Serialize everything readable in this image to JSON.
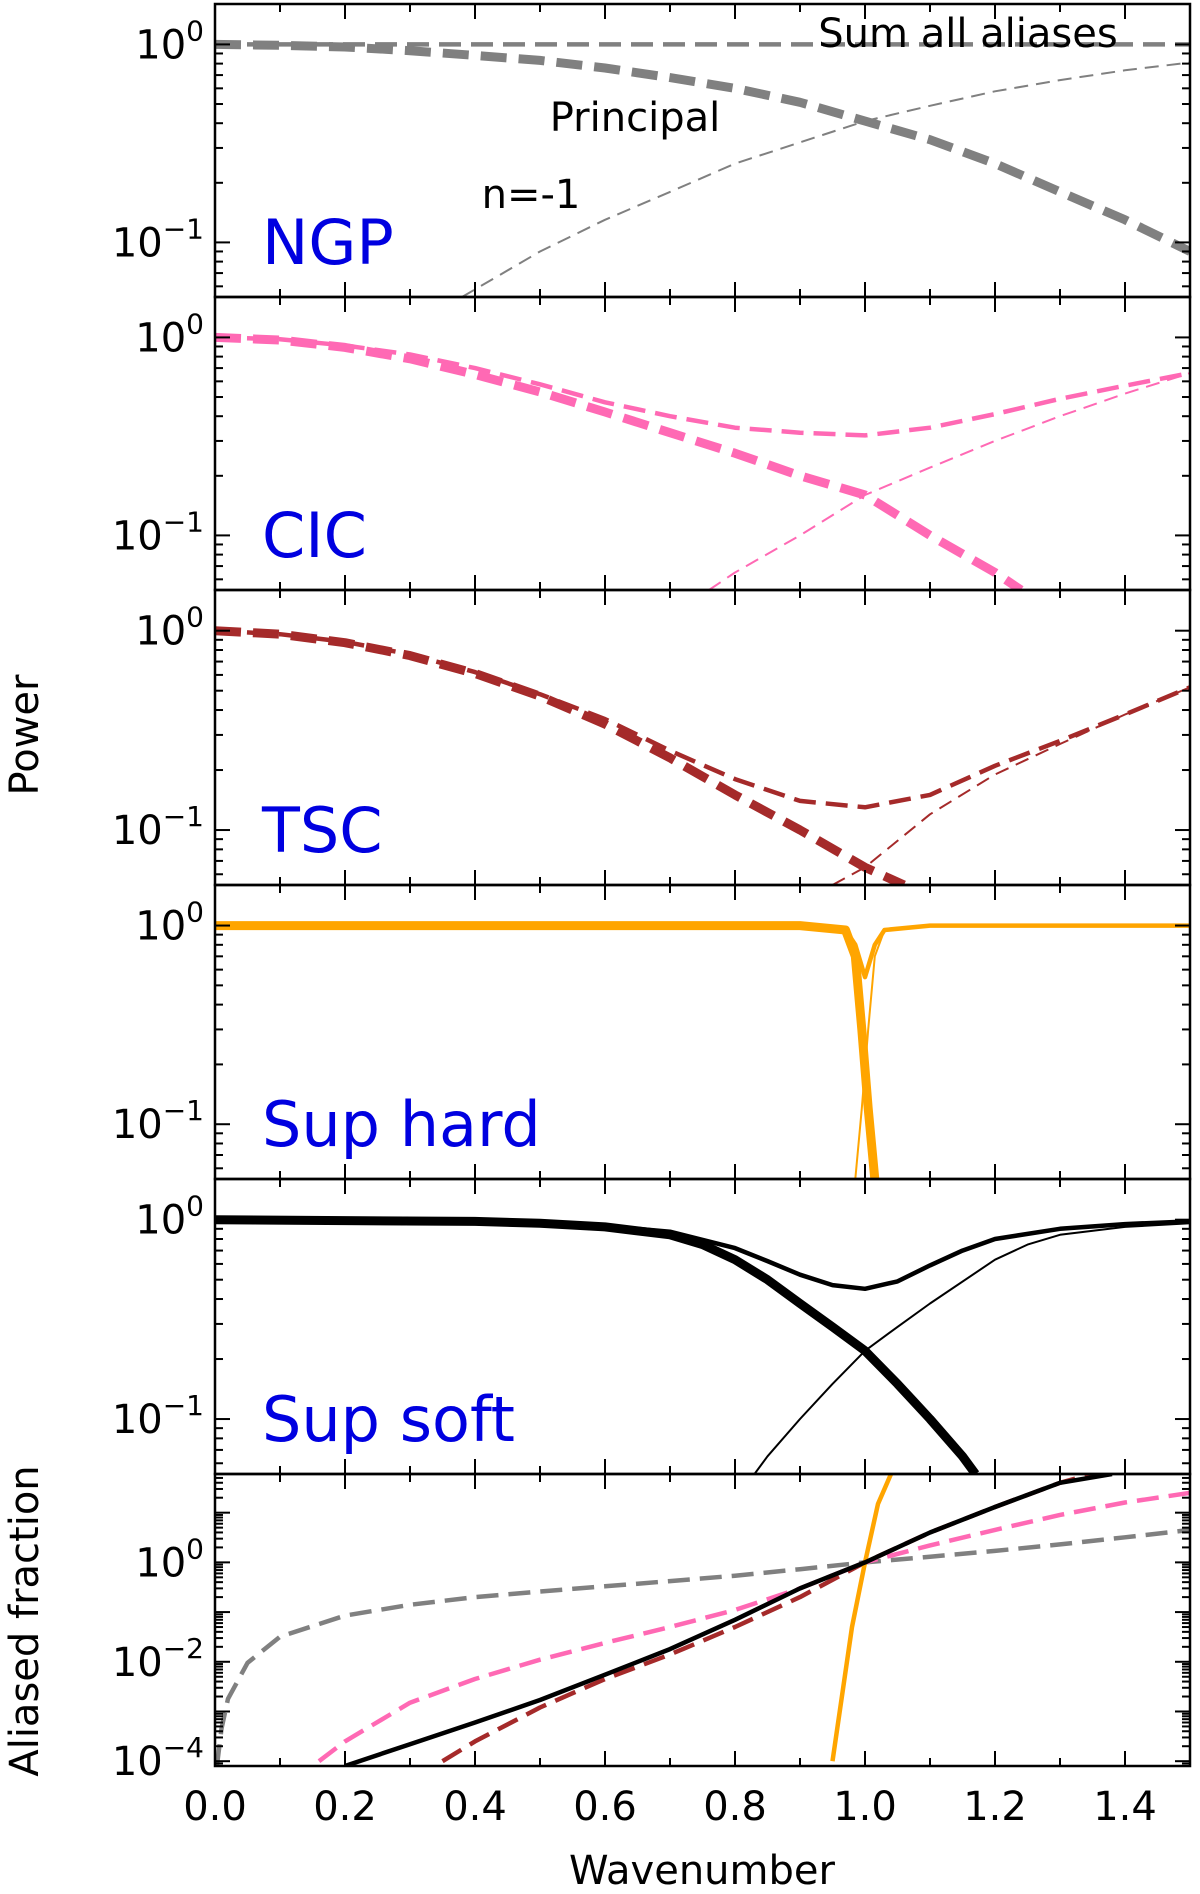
{
  "figure": {
    "xlabel": "Wavenumber",
    "xticks": [
      "0.0",
      "0.2",
      "0.4",
      "0.6",
      "0.8",
      "1.0",
      "1.2",
      "1.4"
    ],
    "ylabels": [
      {
        "text": "Power",
        "panels": [
          0,
          4
        ]
      },
      {
        "text": "Aliased fraction",
        "panels": [
          5,
          5
        ]
      }
    ]
  },
  "colors": {
    "NGP": "#808080",
    "CIC": "#ff69b4",
    "TSC": "#a52a2a",
    "SupHard": "#ffa500",
    "SupSoft": "#000000",
    "label": "#0000e0"
  },
  "chart_data": [
    {
      "type": "line",
      "label": "NGP",
      "yscale": "log",
      "xlim": [
        0,
        1.5
      ],
      "ylim": [
        0.053,
        1.6
      ],
      "yticks": [
        1,
        0.1
      ],
      "ytick_labels": [
        "10^0",
        "10^-1"
      ],
      "annotations": [
        {
          "text": "Sum all aliases",
          "x": 1.15,
          "y": 1.3
        },
        {
          "text": "Principal",
          "x": 0.67,
          "y": 0.54
        },
        {
          "text": "n=-1",
          "x": 0.44,
          "y": 0.18
        }
      ],
      "series": [
        {
          "role": "sum",
          "style": "dashed",
          "width": "medium",
          "x": [
            0,
            0.5,
            1.0,
            1.5
          ],
          "y": [
            1,
            1,
            1,
            1
          ]
        },
        {
          "role": "principal",
          "style": "dashed",
          "width": "thick",
          "x": [
            0,
            0.1,
            0.2,
            0.3,
            0.4,
            0.5,
            0.6,
            0.7,
            0.8,
            0.9,
            1.0,
            1.1,
            1.2,
            1.3,
            1.4,
            1.5
          ],
          "y": [
            1,
            0.99,
            0.97,
            0.93,
            0.88,
            0.83,
            0.76,
            0.68,
            0.6,
            0.51,
            0.41,
            0.33,
            0.25,
            0.18,
            0.13,
            0.09
          ]
        },
        {
          "role": "alias n=-1",
          "style": "dashed",
          "width": "thin",
          "x": [
            0.38,
            0.5,
            0.6,
            0.7,
            0.8,
            0.9,
            1.0,
            1.1,
            1.2,
            1.3,
            1.4,
            1.5
          ],
          "y": [
            0.053,
            0.09,
            0.13,
            0.18,
            0.25,
            0.32,
            0.41,
            0.49,
            0.58,
            0.66,
            0.74,
            0.81
          ]
        }
      ]
    },
    {
      "type": "line",
      "label": "CIC",
      "yscale": "log",
      "xlim": [
        0,
        1.5
      ],
      "ylim": [
        0.053,
        1.6
      ],
      "yticks": [
        1,
        0.1
      ],
      "ytick_labels": [
        "10^0",
        "10^-1"
      ],
      "series": [
        {
          "role": "sum",
          "style": "dashed",
          "width": "medium",
          "x": [
            0,
            0.1,
            0.2,
            0.3,
            0.4,
            0.5,
            0.6,
            0.7,
            0.8,
            0.9,
            1.0,
            1.1,
            1.2,
            1.3,
            1.4,
            1.5
          ],
          "y": [
            1,
            0.98,
            0.91,
            0.82,
            0.7,
            0.58,
            0.47,
            0.4,
            0.35,
            0.33,
            0.32,
            0.35,
            0.41,
            0.49,
            0.57,
            0.66
          ]
        },
        {
          "role": "principal",
          "style": "dashed",
          "width": "thick",
          "x": [
            0,
            0.1,
            0.2,
            0.3,
            0.4,
            0.5,
            0.6,
            0.7,
            0.8,
            0.9,
            1.0,
            1.1,
            1.2,
            1.24
          ],
          "y": [
            1,
            0.97,
            0.89,
            0.78,
            0.65,
            0.53,
            0.42,
            0.33,
            0.26,
            0.2,
            0.16,
            0.1,
            0.065,
            0.053
          ]
        },
        {
          "role": "alias n=-1",
          "style": "dashed",
          "width": "thin",
          "x": [
            0.76,
            0.8,
            0.9,
            1.0,
            1.1,
            1.2,
            1.3,
            1.4,
            1.5
          ],
          "y": [
            0.053,
            0.065,
            0.1,
            0.16,
            0.22,
            0.3,
            0.4,
            0.52,
            0.66
          ]
        }
      ]
    },
    {
      "type": "line",
      "label": "TSC",
      "yscale": "log",
      "xlim": [
        0,
        1.5
      ],
      "ylim": [
        0.053,
        1.6
      ],
      "yticks": [
        1,
        0.1
      ],
      "ytick_labels": [
        "10^0",
        "10^-1"
      ],
      "series": [
        {
          "role": "sum",
          "style": "dashed",
          "width": "medium",
          "x": [
            0,
            0.1,
            0.2,
            0.3,
            0.4,
            0.5,
            0.6,
            0.7,
            0.8,
            0.9,
            1.0,
            1.1,
            1.2,
            1.3,
            1.4,
            1.5
          ],
          "y": [
            1,
            0.96,
            0.88,
            0.76,
            0.62,
            0.48,
            0.36,
            0.25,
            0.18,
            0.14,
            0.13,
            0.15,
            0.21,
            0.28,
            0.38,
            0.52
          ]
        },
        {
          "role": "principal",
          "style": "dashed",
          "width": "thick",
          "x": [
            0,
            0.1,
            0.2,
            0.3,
            0.4,
            0.5,
            0.6,
            0.7,
            0.8,
            0.9,
            1.0,
            1.06
          ],
          "y": [
            1,
            0.96,
            0.87,
            0.75,
            0.61,
            0.47,
            0.34,
            0.23,
            0.15,
            0.1,
            0.065,
            0.053
          ]
        },
        {
          "role": "alias n=-1",
          "style": "dashed",
          "width": "thin",
          "x": [
            0.95,
            1.0,
            1.1,
            1.2,
            1.3,
            1.4,
            1.5
          ],
          "y": [
            0.053,
            0.065,
            0.12,
            0.19,
            0.27,
            0.38,
            0.52
          ]
        }
      ]
    },
    {
      "type": "line",
      "label": "Sup hard",
      "yscale": "log",
      "xlim": [
        0,
        1.5
      ],
      "ylim": [
        0.053,
        1.6
      ],
      "yticks": [
        1,
        0.1
      ],
      "ytick_labels": [
        "10^0",
        "10^-1"
      ],
      "series": [
        {
          "role": "sum",
          "style": "solid",
          "width": "medium",
          "x": [
            0,
            0.9,
            0.97,
            0.985,
            1.0,
            1.015,
            1.03,
            1.1,
            1.5
          ],
          "y": [
            1,
            1,
            0.95,
            0.8,
            0.55,
            0.8,
            0.95,
            1,
            1
          ]
        },
        {
          "role": "principal",
          "style": "solid",
          "width": "thick",
          "x": [
            0,
            0.9,
            0.97,
            0.985,
            0.995,
            1.005,
            1.015
          ],
          "y": [
            1,
            1,
            0.95,
            0.7,
            0.3,
            0.12,
            0.053
          ]
        },
        {
          "role": "alias n=-1",
          "style": "solid",
          "width": "thin",
          "x": [
            0.985,
            0.995,
            1.005,
            1.015,
            1.03,
            1.1,
            1.5
          ],
          "y": [
            0.053,
            0.12,
            0.3,
            0.7,
            0.95,
            1,
            1
          ]
        }
      ]
    },
    {
      "type": "line",
      "label": "Sup soft",
      "yscale": "log",
      "xlim": [
        0,
        1.5
      ],
      "ylim": [
        0.053,
        1.6
      ],
      "yticks": [
        1,
        0.1
      ],
      "ytick_labels": [
        "10^0",
        "10^-1"
      ],
      "series": [
        {
          "role": "sum",
          "style": "solid",
          "width": "medium",
          "x": [
            0,
            0.2,
            0.4,
            0.5,
            0.6,
            0.7,
            0.8,
            0.85,
            0.9,
            0.95,
            1.0,
            1.05,
            1.1,
            1.15,
            1.2,
            1.3,
            1.4,
            1.5
          ],
          "y": [
            1,
            0.99,
            0.98,
            0.96,
            0.93,
            0.87,
            0.72,
            0.62,
            0.53,
            0.47,
            0.45,
            0.49,
            0.59,
            0.7,
            0.8,
            0.9,
            0.95,
            0.98
          ]
        },
        {
          "role": "principal",
          "style": "solid",
          "width": "thick",
          "x": [
            0,
            0.2,
            0.4,
            0.5,
            0.6,
            0.7,
            0.75,
            0.8,
            0.85,
            0.9,
            0.95,
            1.0,
            1.05,
            1.1,
            1.15,
            1.17
          ],
          "y": [
            1,
            0.99,
            0.98,
            0.96,
            0.92,
            0.84,
            0.75,
            0.63,
            0.5,
            0.38,
            0.29,
            0.22,
            0.15,
            0.1,
            0.065,
            0.053
          ]
        },
        {
          "role": "alias n=-1",
          "style": "solid",
          "width": "thin",
          "x": [
            0.83,
            0.85,
            0.9,
            0.95,
            1.0,
            1.05,
            1.1,
            1.2,
            1.25,
            1.3,
            1.4,
            1.5
          ],
          "y": [
            0.053,
            0.065,
            0.1,
            0.15,
            0.22,
            0.29,
            0.38,
            0.63,
            0.75,
            0.84,
            0.92,
            0.96
          ]
        }
      ]
    },
    {
      "type": "line",
      "label": "",
      "yscale": "log",
      "xlim": [
        0,
        1.5
      ],
      "ylim": [
        8e-05,
        60
      ],
      "yticks": [
        1,
        0.01,
        0.0001
      ],
      "ytick_labels": [
        "10^0",
        "10^-2",
        "10^-4"
      ],
      "series": [
        {
          "scheme": "NGP",
          "style": "dashed",
          "width": "medium",
          "x": [
            0.003,
            0.01,
            0.02,
            0.05,
            0.1,
            0.2,
            0.3,
            0.4,
            0.5,
            0.6,
            0.7,
            0.8,
            0.9,
            1.0,
            1.1,
            1.2,
            1.3,
            1.4,
            1.5
          ],
          "y": [
            8e-05,
            0.00045,
            0.0018,
            0.0095,
            0.032,
            0.085,
            0.14,
            0.2,
            0.26,
            0.33,
            0.42,
            0.54,
            0.73,
            1.0,
            1.3,
            1.7,
            2.3,
            3.2,
            4.5
          ]
        },
        {
          "scheme": "CIC",
          "style": "dashed",
          "width": "medium",
          "x": [
            0.16,
            0.2,
            0.3,
            0.4,
            0.5,
            0.6,
            0.7,
            0.8,
            0.9,
            1.0,
            1.1,
            1.2,
            1.3,
            1.4,
            1.5
          ],
          "y": [
            0.0001,
            0.00025,
            0.0015,
            0.0045,
            0.011,
            0.024,
            0.05,
            0.11,
            0.3,
            1.0,
            2.2,
            4.5,
            9,
            16,
            25
          ]
        },
        {
          "scheme": "TSC",
          "style": "dashed",
          "width": "medium",
          "x": [
            0.35,
            0.4,
            0.5,
            0.6,
            0.7,
            0.8,
            0.9,
            1.0,
            1.1,
            1.2,
            1.3,
            1.35
          ],
          "y": [
            0.0001,
            0.00025,
            0.0012,
            0.0045,
            0.014,
            0.05,
            0.2,
            1.0,
            4,
            13,
            40,
            60
          ]
        },
        {
          "scheme": "SupHard",
          "style": "solid",
          "width": "medium",
          "x": [
            0.95,
            0.98,
            1.0,
            1.02,
            1.04
          ],
          "y": [
            0.0001,
            0.05,
            1.0,
            15,
            60
          ]
        },
        {
          "scheme": "SupSoft",
          "style": "solid",
          "width": "medium",
          "x": [
            0.2,
            0.3,
            0.4,
            0.5,
            0.6,
            0.7,
            0.8,
            0.9,
            1.0,
            1.1,
            1.2,
            1.3,
            1.38
          ],
          "y": [
            8e-05,
            0.00022,
            0.0006,
            0.0017,
            0.0055,
            0.018,
            0.07,
            0.3,
            1.0,
            4,
            13,
            40,
            60
          ]
        }
      ]
    }
  ]
}
